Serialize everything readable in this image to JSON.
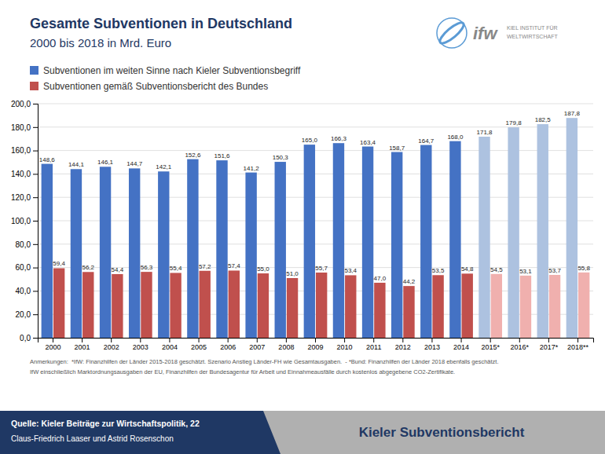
{
  "chart_data": {
    "type": "bar",
    "title": "Gesamte Subventionen in Deutschland",
    "subtitle": "2000 bis 2018 in Mrd. Euro",
    "categories": [
      "2000",
      "2001",
      "2002",
      "2003",
      "2004",
      "2005",
      "2006",
      "2007",
      "2008",
      "2009",
      "2010",
      "2011",
      "2012",
      "2013",
      "2014",
      "2015*",
      "2016*",
      "2017*",
      "2018**"
    ],
    "series": [
      {
        "name": "Subventionen im weiten Sinne nach Kieler Subventionsbegriff",
        "color": "#4472C4",
        "colors": [
          "#4472C4",
          "#4472C4",
          "#4472C4",
          "#4472C4",
          "#4472C4",
          "#4472C4",
          "#4472C4",
          "#4472C4",
          "#4472C4",
          "#4472C4",
          "#4472C4",
          "#4472C4",
          "#4472C4",
          "#4472C4",
          "#4472C4",
          "#ADC2E0",
          "#ADC2E0",
          "#ADC2E0",
          "#ADC2E0"
        ],
        "values": [
          148.6,
          144.1,
          146.1,
          144.7,
          142.1,
          152.6,
          151.6,
          141.2,
          150.3,
          165.0,
          166.3,
          163.4,
          158.7,
          164.7,
          168.0,
          171.8,
          179.8,
          182.5,
          187.8
        ],
        "value_labels": [
          "148,6",
          "144,1",
          "146,1",
          "144,7",
          "142,1",
          "152,6",
          "151,6",
          "141,2",
          "150,3",
          "165,0",
          "166,3",
          "163,4",
          "158,7",
          "164,7",
          "168,0",
          "171,8",
          "179,8",
          "182,5",
          "187,8"
        ]
      },
      {
        "name": "Subventionen gemäß Subventionsbericht des Bundes",
        "color": "#C0504D",
        "colors": [
          "#C0504D",
          "#C0504D",
          "#C0504D",
          "#C0504D",
          "#C0504D",
          "#C0504D",
          "#C0504D",
          "#C0504D",
          "#C0504D",
          "#C0504D",
          "#C0504D",
          "#C0504D",
          "#C0504D",
          "#C0504D",
          "#C0504D",
          "#F0B0AE",
          "#F0B0AE",
          "#F0B0AE",
          "#F0B0AE"
        ],
        "values": [
          59.4,
          56.2,
          54.4,
          56.3,
          55.4,
          57.2,
          57.4,
          55.0,
          51.0,
          55.7,
          53.4,
          47.0,
          44.2,
          53.5,
          54.8,
          54.5,
          53.1,
          53.7,
          55.8
        ],
        "value_labels": [
          "59,4",
          "56,2",
          "54,4",
          "56,3",
          "55,4",
          "57,2",
          "57,4",
          "55,0",
          "51,0",
          "55,7",
          "53,4",
          "47,0",
          "44,2",
          "53,5",
          "54,8",
          "54,5",
          "53,1",
          "53,7",
          "55,8"
        ]
      }
    ],
    "ylim": [
      0,
      200
    ],
    "yticks": [
      {
        "value": 0,
        "label": "0,0"
      },
      {
        "value": 20,
        "label": "20,0"
      },
      {
        "value": 40,
        "label": "40,0"
      },
      {
        "value": 60,
        "label": "60,0"
      },
      {
        "value": 80,
        "label": "80,0"
      },
      {
        "value": 100,
        "label": "100,0"
      },
      {
        "value": 120,
        "label": "120,0"
      },
      {
        "value": 140,
        "label": "140,0"
      },
      {
        "value": 160,
        "label": "160,0"
      },
      {
        "value": 180,
        "label": "180,0"
      },
      {
        "value": 200,
        "label": "200,0"
      }
    ],
    "grid": true,
    "legend": "top left",
    "data_labels": true,
    "annotations": [
      "Anmerkungen:  *IfW: Finanzhilfen der Länder 2015-2018 geschätzt. Szenario Anstieg Länder-FH wie Gesamtausgaben.  - *Bund: Finanzhilfen der Länder 2018 ebenfalls geschätzt.",
      "IfW einschließlich Marktordnungsausgaben der EU, Finanzhilfen der Bundesagentur für Arbeit und Einnahmeausfälle durch kostenlos abgegebene CO2-Zertifikate.",
      "Quelle: Kieler Beiträge zur Wirtschaftspolitik, 22",
      "Claus-Friedrich Laaser und Astrid Rosenschon",
      "Kieler Subventionsbericht",
      "ifw",
      "KIEL INSTITUT FÜR",
      "WELTWIRTSCHAFT"
    ]
  }
}
